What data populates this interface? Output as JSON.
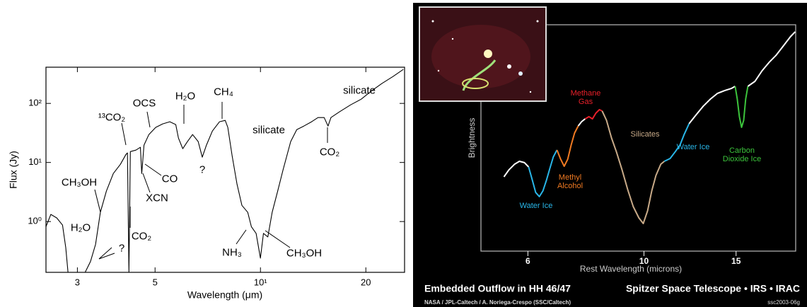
{
  "chart_data": [
    {
      "type": "line",
      "xlabel": "Wavelength (μm)",
      "ylabel": "Flux (Jy)",
      "xscale": "log",
      "yscale": "log",
      "color": "#000000",
      "xlim": [
        2.44,
        25.8
      ],
      "ylim": [
        0.138,
        410
      ],
      "xticks": [
        3,
        5,
        {
          "value": 10,
          "label": "10¹"
        },
        20
      ],
      "yticks": [
        {
          "value": 1,
          "label": "10⁰"
        },
        {
          "value": 10,
          "label": "10¹"
        },
        {
          "value": 100,
          "label": "10²"
        }
      ],
      "x": [
        2.44,
        2.52,
        2.62,
        2.72,
        2.78,
        2.82,
        3.0,
        3.16,
        3.27,
        3.38,
        3.49,
        3.63,
        3.8,
        3.98,
        4.13,
        4.17,
        4.21,
        4.25,
        4.41,
        4.54,
        4.58,
        4.65,
        4.8,
        5.02,
        5.26,
        5.51,
        5.73,
        5.83,
        6.0,
        6.19,
        6.4,
        6.64,
        6.82,
        7.01,
        7.29,
        7.64,
        7.93,
        8.07,
        8.3,
        8.57,
        8.85,
        9.2,
        9.42,
        9.72,
        10,
        10.2,
        10.5,
        10.8,
        11.2,
        11.6,
        12.2,
        12.7,
        13.3,
        14.0,
        14.6,
        15.2,
        15.6,
        15.9,
        16.8,
        18.1,
        19.4,
        20.8,
        22.2,
        23.9,
        25.6
      ],
      "values": [
        0.82,
        1.32,
        1.15,
        0.87,
        0.36,
        0.14,
        null,
        0.14,
        0.21,
        0.41,
        1.43,
        3.27,
        6.5,
        9.3,
        13.7,
        14.5,
        0.14,
        15.3,
        16.2,
        18.1,
        6.5,
        19.7,
        29.7,
        39.2,
        45,
        48.9,
        43.8,
        25.9,
        17.1,
        22.6,
        29.7,
        22.6,
        12.3,
        19.7,
        34.1,
        48.9,
        51.6,
        39.2,
        13,
        4.3,
        1.88,
        1.43,
        0.82,
        0.63,
        0.24,
        0.63,
        0.55,
        1.43,
        3.27,
        7.5,
        22.6,
        36,
        41.4,
        48.9,
        57.6,
        57.6,
        41.4,
        57.6,
        71.8,
        94.6,
        118,
        164,
        216,
        285,
        376
      ],
      "annotations": [
        "silicate",
        "silicate",
        "OCS",
        "H₂O",
        "CH₄",
        "¹³CO₂",
        "CH₃OH",
        "H₂O",
        "?",
        "?",
        "CO",
        "XCN",
        "CO₂",
        "CO₂",
        "NH₃",
        "CH₃OH"
      ]
    },
    {
      "type": "line",
      "title": "Embedded Outflow in HH 46/47",
      "subtitle": "Spitzer Space Telescope • IRS • IRAC",
      "credit": "NASA / JPL-Caltech / A. Noriega-Crespo (SSC/Caltech)",
      "image_id": "ssc2003-06g",
      "xlabel": "Rest Wavelength (microns)",
      "ylabel": "Brightness",
      "xscale": "log",
      "xlim": [
        4.88,
        19.5
      ],
      "ylim": [
        0,
        100
      ],
      "xticks": [
        6,
        10,
        15
      ],
      "series": [
        {
          "color": "#ffffff",
          "x": [
            5.4,
            5.52,
            5.66,
            5.78,
            5.91,
            6.02
          ],
          "values": [
            32.8,
            35.9,
            38.4,
            39.7,
            39.1,
            37.2
          ]
        },
        {
          "name": "Water Ice",
          "color": "#29b6e8",
          "x": [
            6.02,
            6.12,
            6.21,
            6.31,
            6.41,
            6.51,
            6.61,
            6.71,
            6.82
          ],
          "values": [
            37.2,
            31.3,
            25.9,
            24.1,
            26.6,
            31.3,
            36.6,
            41.6,
            44.7
          ]
        },
        {
          "name": "Methyl Alcohol",
          "color": "#f07a22",
          "x": [
            6.82,
            6.93,
            7.04,
            7.15,
            7.26,
            7.37,
            7.49
          ],
          "values": [
            44.7,
            40.6,
            37.5,
            40.6,
            46.9,
            52.2,
            55.3
          ]
        },
        {
          "color": "#ffffff",
          "x": [
            7.49,
            7.6,
            7.72
          ],
          "values": [
            55.3,
            57.2,
            58.4
          ]
        },
        {
          "name": "Methane Gas",
          "color": "#e8202a",
          "x": [
            7.72,
            7.85,
            7.97,
            8.09,
            8.22,
            8.32
          ],
          "values": [
            58.4,
            59.4,
            58.4,
            60.9,
            62.5,
            61.9
          ]
        },
        {
          "name": "Silicates",
          "color": "#c8aa88",
          "x": [
            8.32,
            8.48,
            8.67,
            8.86,
            9.08,
            9.31,
            9.54,
            9.78,
            9.97,
            10.16,
            10.35,
            10.54,
            10.77,
            10.94
          ],
          "values": [
            61.9,
            57.8,
            50,
            43.8,
            35.9,
            27.2,
            19.7,
            14.7,
            12.2,
            17.8,
            26.6,
            33.4,
            38.4,
            39.7
          ]
        },
        {
          "name": "Water Ice",
          "color": "#29b6e8",
          "x": [
            10.94,
            11.22,
            11.47,
            11.72,
            11.94,
            12.2
          ],
          "values": [
            39.7,
            40.9,
            43.8,
            46.9,
            51.6,
            56.3
          ]
        },
        {
          "color": "#ffffff",
          "x": [
            12.2,
            12.59,
            12.99,
            13.4,
            13.82,
            14.26,
            14.71,
            14.94
          ],
          "values": [
            56.3,
            60.3,
            64.1,
            67.2,
            69.7,
            70.9,
            71.9,
            72.8
          ]
        },
        {
          "name": "Carbon Dioxide Ice",
          "color": "#3cc43c",
          "x": [
            14.94,
            15.08,
            15.22,
            15.37,
            15.51,
            15.65,
            15.8
          ],
          "values": [
            72.8,
            67.2,
            59.4,
            54.7,
            57.8,
            67.2,
            72.8
          ]
        },
        {
          "color": "#ffffff",
          "x": [
            15.8,
            16.3,
            16.82,
            17.35,
            17.9,
            18.46,
            19.05,
            19.46
          ],
          "values": [
            72.8,
            75,
            79.7,
            83.4,
            86.6,
            90.6,
            94.7,
            96.9
          ]
        }
      ]
    }
  ]
}
